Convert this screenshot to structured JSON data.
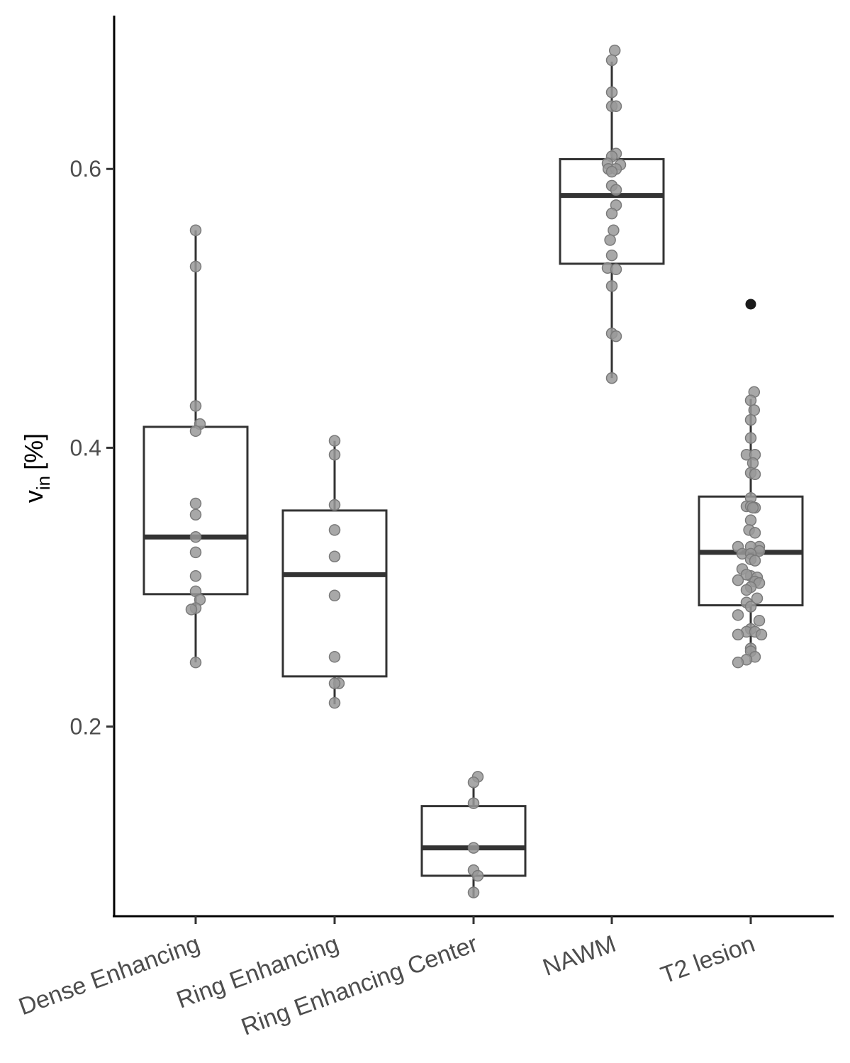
{
  "chart_data": {
    "type": "boxplot",
    "title": "",
    "xlabel": "",
    "ylabel": "v",
    "ylabel_subscript": "in",
    "ylabel_unit": "[%]",
    "ylim": [
      0.065,
      0.71
    ],
    "yticks": [
      0.2,
      0.4,
      0.6
    ],
    "ytick_labels": [
      "0.2",
      "0.4",
      "0.6"
    ],
    "grid": false,
    "categories": [
      "Dense Enhancing",
      "Ring Enhancing",
      "Ring Enhancing Center",
      "NAWM",
      "T2 lesion"
    ],
    "boxes": [
      {
        "category": "Dense Enhancing",
        "q1": 0.295,
        "median": 0.336,
        "q3": 0.415,
        "whisker_low": 0.246,
        "whisker_high": 0.556,
        "outliers": []
      },
      {
        "category": "Ring Enhancing",
        "q1": 0.236,
        "median": 0.309,
        "q3": 0.355,
        "whisker_low": 0.216,
        "whisker_high": 0.405,
        "outliers": []
      },
      {
        "category": "Ring Enhancing Center",
        "q1": 0.093,
        "median": 0.113,
        "q3": 0.143,
        "whisker_low": 0.077,
        "whisker_high": 0.157,
        "outliers": []
      },
      {
        "category": "NAWM",
        "q1": 0.532,
        "median": 0.581,
        "q3": 0.607,
        "whisker_low": 0.45,
        "whisker_high": 0.677,
        "outliers": []
      },
      {
        "category": "T2 lesion",
        "q1": 0.287,
        "median": 0.325,
        "q3": 0.365,
        "whisker_low": 0.246,
        "whisker_high": 0.435,
        "outliers": [
          0.503
        ]
      }
    ],
    "points": [
      {
        "category": "Dense Enhancing",
        "values": [
          0.556,
          0.53,
          0.43,
          0.417,
          0.412,
          0.36,
          0.352,
          0.336,
          0.325,
          0.308,
          0.297,
          0.291,
          0.285,
          0.284,
          0.246
        ],
        "jitter": [
          0,
          0,
          0,
          0.1,
          0,
          0,
          0,
          0,
          0,
          0,
          0,
          0.1,
          0,
          -0.1,
          0
        ]
      },
      {
        "category": "Ring Enhancing",
        "values": [
          0.405,
          0.395,
          0.359,
          0.341,
          0.322,
          0.294,
          0.25,
          0.231,
          0.231,
          0.217
        ],
        "jitter": [
          0,
          0,
          0,
          0,
          0,
          0,
          0,
          0.1,
          0,
          0
        ]
      },
      {
        "category": "Ring Enhancing Center",
        "values": [
          0.164,
          0.16,
          0.145,
          0.113,
          0.097,
          0.093,
          0.081
        ],
        "jitter": [
          0.1,
          0,
          0,
          0,
          0,
          0.1,
          0
        ]
      },
      {
        "category": "NAWM",
        "values": [
          0.685,
          0.678,
          0.655,
          0.645,
          0.645,
          0.611,
          0.609,
          0.604,
          0.603,
          0.6,
          0.6,
          0.598,
          0.588,
          0.585,
          0.574,
          0.568,
          0.556,
          0.549,
          0.538,
          0.529,
          0.528,
          0.516,
          0.482,
          0.48,
          0.45
        ],
        "jitter": [
          0.07,
          0,
          0,
          0,
          0.1,
          0.1,
          0,
          -0.1,
          0.2,
          -0.08,
          0.1,
          0,
          0,
          0.1,
          0.1,
          0,
          0.04,
          -0.04,
          0,
          -0.1,
          0.1,
          0,
          0,
          0.1,
          0
        ]
      },
      {
        "category": "T2 lesion",
        "values": [
          0.44,
          0.434,
          0.427,
          0.42,
          0.407,
          0.395,
          0.395,
          0.389,
          0.382,
          0.381,
          0.364,
          0.358,
          0.358,
          0.357,
          0.357,
          0.348,
          0.341,
          0.339,
          0.329,
          0.329,
          0.329,
          0.326,
          0.324,
          0.324,
          0.32,
          0.319,
          0.313,
          0.308,
          0.309,
          0.307,
          0.305,
          0.304,
          0.303,
          0.3,
          0.298,
          0.292,
          0.289,
          0.286,
          0.28,
          0.276,
          0.27,
          0.268,
          0.268,
          0.266,
          0.266,
          0.256,
          0.254,
          0.25,
          0.248,
          0.246
        ],
        "jitter": [
          0.08,
          0,
          0.08,
          0,
          0,
          -0.1,
          0.1,
          0.05,
          0,
          0.1,
          0,
          -0.1,
          0,
          0.1,
          0.05,
          0,
          -0.04,
          0.1,
          -0.3,
          0.2,
          0,
          0.2,
          -0.2,
          0,
          0,
          0.1,
          -0.2,
          0,
          -0.1,
          0.15,
          -0.3,
          0.1,
          0.2,
          0,
          -0.1,
          0.15,
          -0.1,
          0,
          -0.3,
          0.2,
          0,
          -0.1,
          0.1,
          -0.3,
          0.25,
          0,
          0,
          0.1,
          -0.1,
          -0.3
        ]
      }
    ]
  }
}
